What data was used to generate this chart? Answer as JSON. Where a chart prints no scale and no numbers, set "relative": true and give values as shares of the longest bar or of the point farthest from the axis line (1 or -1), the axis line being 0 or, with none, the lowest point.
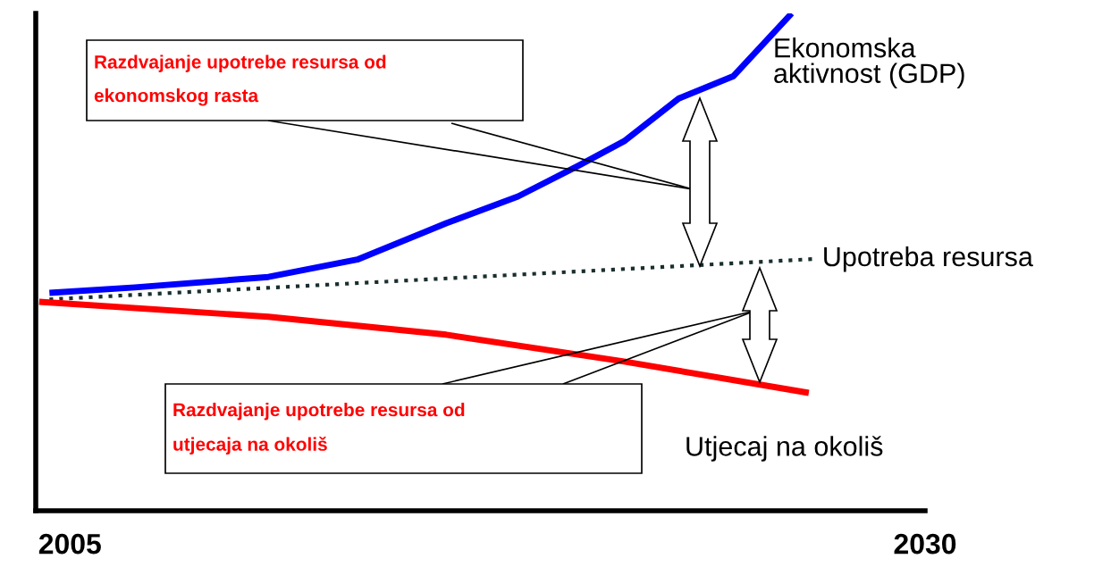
{
  "chart_data": {
    "type": "line",
    "relative": true,
    "xlim": [
      2004,
      2030
    ],
    "xticks": [
      2005,
      2030
    ],
    "tick_labels": "x",
    "grid": false,
    "legend": false,
    "series": [
      {
        "name": "Ekonomska aktivnost (GDP)",
        "color": "#0000ff",
        "line_style": "solid",
        "x": [
          2004.4,
          2006.9,
          2010.8,
          2013.4,
          2016.0,
          2018.1,
          2019.9,
          2021.2,
          2022.8,
          2024.4,
          2026.1
        ],
        "values": [
          0.438,
          0.449,
          0.47,
          0.505,
          0.578,
          0.632,
          0.695,
          0.743,
          0.829,
          0.874,
          1.0
        ]
      },
      {
        "name": "Upotreba resursa",
        "color": "#1a2e2e",
        "line_style": "dotted",
        "x": [
          2004.4,
          2026.7
        ],
        "values": [
          0.425,
          0.506
        ]
      },
      {
        "name": "Utjecaj na okoliš",
        "color": "#ff0000",
        "line_style": "solid",
        "x": [
          2004.1,
          2010.8,
          2016.0,
          2021.2,
          2026.6
        ],
        "values": [
          0.42,
          0.39,
          0.354,
          0.3,
          0.237
        ]
      }
    ],
    "annotations": [
      "Razdvajanje upotrebe resursa od ekonomskog rasta",
      "Razdvajanje upotrebe resursa od utjecaja na okoliš"
    ]
  }
}
